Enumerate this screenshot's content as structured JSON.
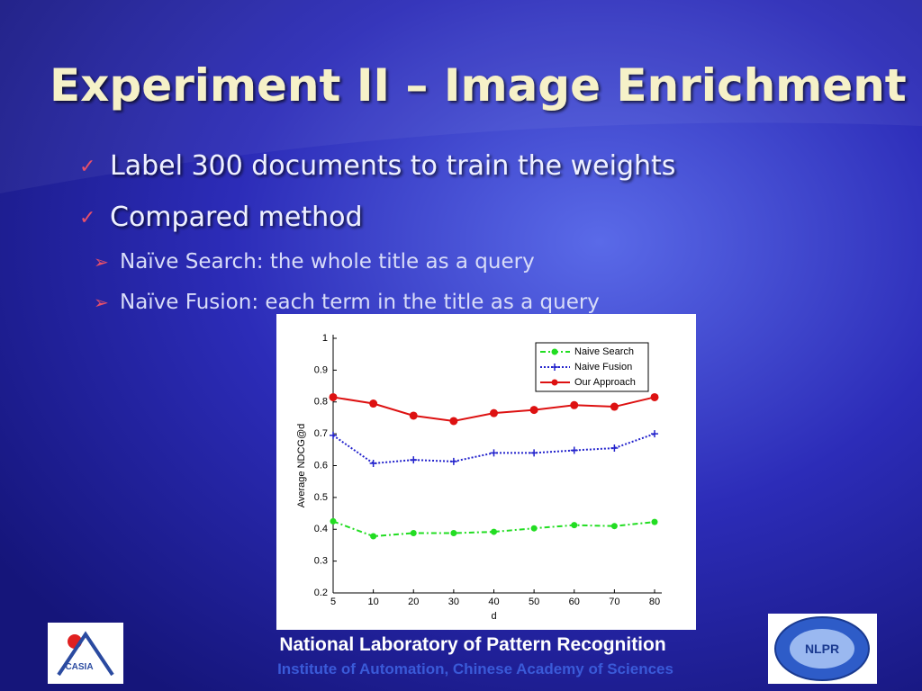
{
  "slide": {
    "title": "Experiment II – Image Enrichment",
    "bullets": [
      "Label 300 documents to train the weights",
      "Compared method"
    ],
    "sub_bullets": [
      "Naïve Search: the whole title as a query",
      "Naïve Fusion: each term in the title as a query"
    ],
    "footer": {
      "line1": "National Laboratory of Pattern Recognition",
      "line2": "Institute of Automation, Chinese Academy of Sciences"
    },
    "logos": {
      "left": "CASIA",
      "right": "NLPR"
    }
  },
  "chart_data": {
    "type": "line",
    "xlabel": "d",
    "ylabel": "Average NDCG@d",
    "categories": [
      5,
      10,
      20,
      30,
      40,
      50,
      60,
      70,
      80
    ],
    "ylim": [
      0.2,
      1
    ],
    "yticks": [
      0.2,
      0.3,
      0.4,
      0.5,
      0.6,
      0.7,
      0.8,
      0.9,
      1
    ],
    "legend": "upper right",
    "series": [
      {
        "name": "Naive Search",
        "color": "#22dd22",
        "marker": "circle",
        "dash": "6 3 2 3",
        "values": [
          0.425,
          0.378,
          0.388,
          0.388,
          0.392,
          0.403,
          0.413,
          0.41,
          0.423
        ]
      },
      {
        "name": "Naive Fusion",
        "color": "#2222cc",
        "marker": "plus",
        "dash": "2 2",
        "values": [
          0.695,
          0.607,
          0.618,
          0.613,
          0.64,
          0.64,
          0.648,
          0.655,
          0.7
        ]
      },
      {
        "name": "Our Approach",
        "color": "#dd1111",
        "marker": "circle",
        "dash": "none",
        "values": [
          0.815,
          0.795,
          0.757,
          0.74,
          0.765,
          0.775,
          0.79,
          0.785,
          0.815
        ]
      }
    ]
  }
}
